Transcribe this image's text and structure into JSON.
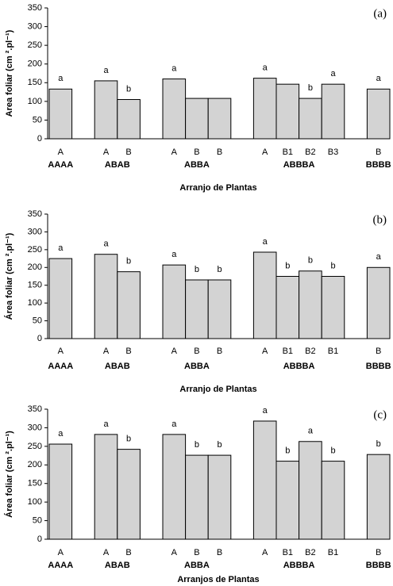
{
  "chart_data": [
    {
      "type": "bar",
      "panel_label": "(a)",
      "y_label": "Area foliar (cm ².pl⁻¹)",
      "x_label": "Arranjo de Plantas",
      "ylim": [
        0,
        350
      ],
      "yticks": [
        0,
        50,
        100,
        150,
        200,
        250,
        300,
        350
      ],
      "color": "#d3d3d3",
      "groups": [
        {
          "label": "AAAA",
          "categories": [
            "A"
          ],
          "values": [
            133
          ],
          "letters": [
            "a"
          ]
        },
        {
          "label": "ABAB",
          "categories": [
            "A",
            "B"
          ],
          "values": [
            155,
            105
          ],
          "letters": [
            "a",
            "b"
          ]
        },
        {
          "label": "ABBA",
          "categories": [
            "A",
            "B",
            "B"
          ],
          "values": [
            160,
            108,
            108
          ],
          "letters": [
            "a",
            null,
            null
          ]
        },
        {
          "label": "ABBBA",
          "categories": [
            "A",
            "B1",
            "B2",
            "B3"
          ],
          "values": [
            162,
            146,
            108,
            146
          ],
          "letters": [
            "a",
            null,
            "b",
            "a"
          ]
        },
        {
          "label": "BBBB",
          "categories": [
            "B"
          ],
          "values": [
            133
          ],
          "letters": [
            "a"
          ]
        }
      ]
    },
    {
      "type": "bar",
      "panel_label": "(b)",
      "y_label": "Área foliar (cm ².pl⁻¹)",
      "x_label": "Arranjo de Plantas",
      "ylim": [
        0,
        350
      ],
      "yticks": [
        0,
        50,
        100,
        150,
        200,
        250,
        300,
        350
      ],
      "color": "#d3d3d3",
      "groups": [
        {
          "label": "AAAA",
          "categories": [
            "A"
          ],
          "values": [
            225
          ],
          "letters": [
            "a"
          ]
        },
        {
          "label": "ABAB",
          "categories": [
            "A",
            "B"
          ],
          "values": [
            237,
            188
          ],
          "letters": [
            "a",
            "b"
          ]
        },
        {
          "label": "ABBA",
          "categories": [
            "A",
            "B",
            "B"
          ],
          "values": [
            207,
            165,
            165
          ],
          "letters": [
            "a",
            "b",
            "b"
          ]
        },
        {
          "label": "ABBBA",
          "categories": [
            "A",
            "B1",
            "B2",
            "B1"
          ],
          "values": [
            243,
            175,
            190,
            175
          ],
          "letters": [
            "a",
            "b",
            "b",
            "b"
          ]
        },
        {
          "label": "BBBB",
          "categories": [
            "B"
          ],
          "values": [
            200
          ],
          "letters": [
            "a"
          ]
        }
      ]
    },
    {
      "type": "bar",
      "panel_label": "(c)",
      "y_label": "Área foliar (cm ².pl⁻¹)",
      "x_label": "Arranjos de Plantas",
      "ylim": [
        0,
        350
      ],
      "yticks": [
        0,
        50,
        100,
        150,
        200,
        250,
        300,
        350
      ],
      "color": "#d3d3d3",
      "groups": [
        {
          "label": "AAAA",
          "categories": [
            "A"
          ],
          "values": [
            256
          ],
          "letters": [
            "a"
          ]
        },
        {
          "label": "ABAB",
          "categories": [
            "A",
            "B"
          ],
          "values": [
            282,
            242
          ],
          "letters": [
            "a",
            "b"
          ]
        },
        {
          "label": "ABBA",
          "categories": [
            "A",
            "B",
            "B"
          ],
          "values": [
            282,
            226,
            226
          ],
          "letters": [
            "a",
            "b",
            "b"
          ]
        },
        {
          "label": "ABBBA",
          "categories": [
            "A",
            "B1",
            "B2",
            "B1"
          ],
          "values": [
            318,
            210,
            263,
            210
          ],
          "letters": [
            "a",
            "b",
            "a",
            "b"
          ]
        },
        {
          "label": "BBBB",
          "categories": [
            "B"
          ],
          "values": [
            228
          ],
          "letters": [
            "b"
          ]
        }
      ]
    }
  ]
}
